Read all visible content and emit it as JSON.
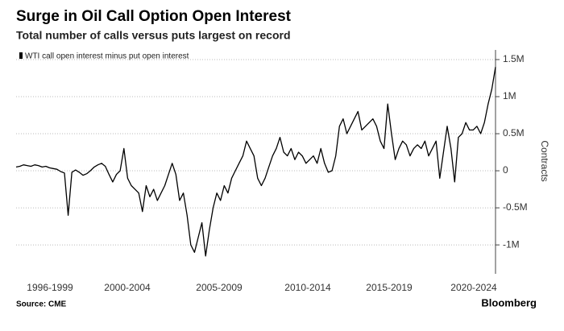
{
  "chart_data": {
    "type": "line",
    "title": "Surge in Oil Call Option Open Interest",
    "subtitle": "Total number of calls versus puts largest on record",
    "y_label": "Contracts",
    "source": "Source: CME",
    "brand": "Bloomberg",
    "x_labels": [
      "1996-1999",
      "2000-2004",
      "2005-2009",
      "2010-2014",
      "2015-2019",
      "2020-2024"
    ],
    "series": [
      {
        "name": "WTI call open interest minus put open interest",
        "color": "#000000",
        "values": [
          50000,
          60000,
          80000,
          70000,
          60000,
          80000,
          70000,
          50000,
          60000,
          40000,
          30000,
          20000,
          -10000,
          -30000,
          -600000,
          -20000,
          10000,
          -20000,
          -60000,
          -40000,
          0,
          50000,
          80000,
          100000,
          60000,
          -50000,
          -150000,
          -50000,
          0,
          300000,
          -100000,
          -200000,
          -250000,
          -300000,
          -550000,
          -200000,
          -350000,
          -250000,
          -400000,
          -300000,
          -200000,
          -50000,
          100000,
          -50000,
          -400000,
          -300000,
          -600000,
          -1000000,
          -1100000,
          -900000,
          -700000,
          -1150000,
          -800000,
          -500000,
          -300000,
          -400000,
          -200000,
          -300000,
          -100000,
          0,
          100000,
          200000,
          400000,
          300000,
          200000,
          -100000,
          -200000,
          -100000,
          50000,
          200000,
          300000,
          450000,
          250000,
          200000,
          300000,
          150000,
          250000,
          200000,
          100000,
          150000,
          200000,
          100000,
          300000,
          100000,
          -20000,
          0,
          200000,
          600000,
          700000,
          500000,
          600000,
          700000,
          800000,
          550000,
          600000,
          650000,
          700000,
          600000,
          400000,
          300000,
          900000,
          500000,
          150000,
          300000,
          400000,
          350000,
          200000,
          300000,
          350000,
          300000,
          400000,
          200000,
          300000,
          400000,
          -100000,
          250000,
          600000,
          300000,
          -150000,
          450000,
          500000,
          650000,
          550000,
          550000,
          600000,
          500000,
          650000,
          900000,
          1100000,
          1400000
        ]
      }
    ],
    "ylim": [
      -1390000,
      1630000
    ],
    "yticks": [
      {
        "value": -1000000,
        "label": "-1M"
      },
      {
        "value": -500000,
        "label": "-0.5M"
      },
      0,
      {
        "value": 500000,
        "label": "0.5M"
      },
      {
        "value": 1000000,
        "label": "1M"
      },
      {
        "value": 1500000,
        "label": "1.5M"
      }
    ],
    "grid": true
  }
}
